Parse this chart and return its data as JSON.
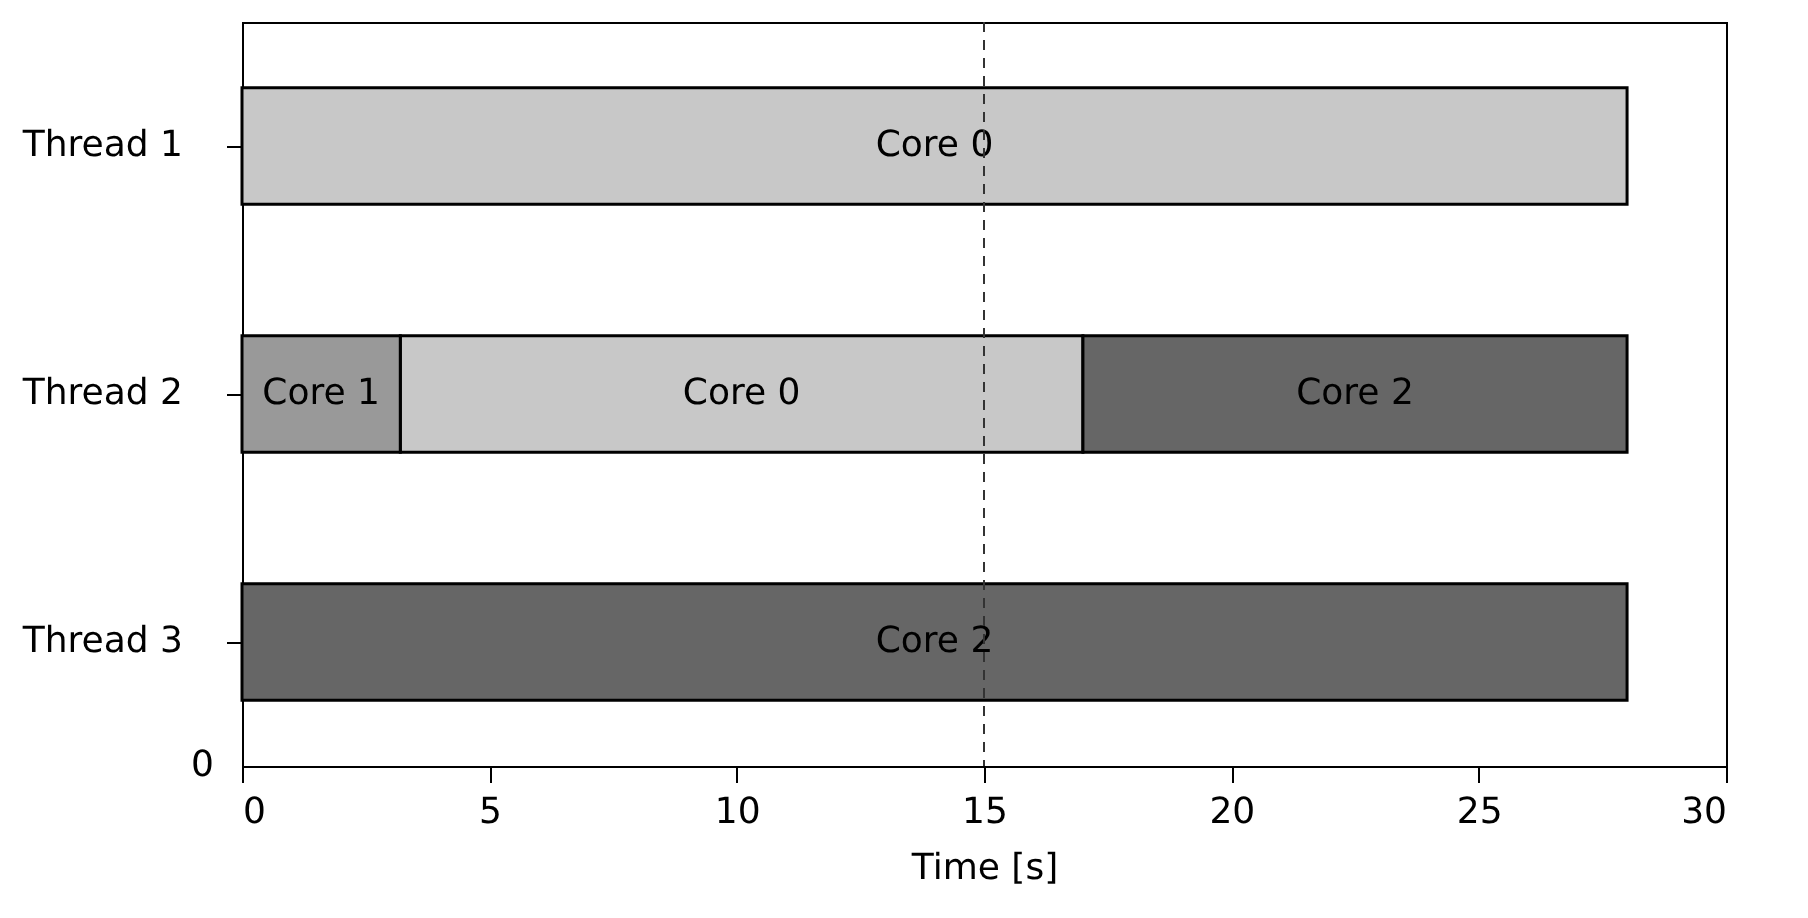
{
  "chart_data": {
    "type": "bar",
    "orientation": "horizontal",
    "xlabel": "Time [s]",
    "categories": [
      "Thread 1",
      "Thread 2",
      "Thread 3"
    ],
    "series": [
      {
        "name": "Core 0",
        "color": "#c8c8c8",
        "values": [
          28,
          13.8,
          null
        ],
        "base": [
          0,
          3.2,
          null
        ]
      },
      {
        "name": "Core 1",
        "color": "#999999",
        "values": [
          null,
          3.2,
          null
        ],
        "base": [
          null,
          0,
          null
        ]
      },
      {
        "name": "Core 2",
        "color": "#666666",
        "values": [
          null,
          11,
          28
        ],
        "base": [
          null,
          17,
          0
        ]
      }
    ],
    "xlim": [
      0,
      30
    ],
    "xticks": [
      0,
      5,
      10,
      15,
      20,
      25,
      30
    ],
    "ref_lines": [
      {
        "axis": "x",
        "value": 15,
        "line_style": "dashed",
        "color": "#333333"
      }
    ],
    "annotations": [
      "0"
    ],
    "grid": false,
    "legend": false
  }
}
